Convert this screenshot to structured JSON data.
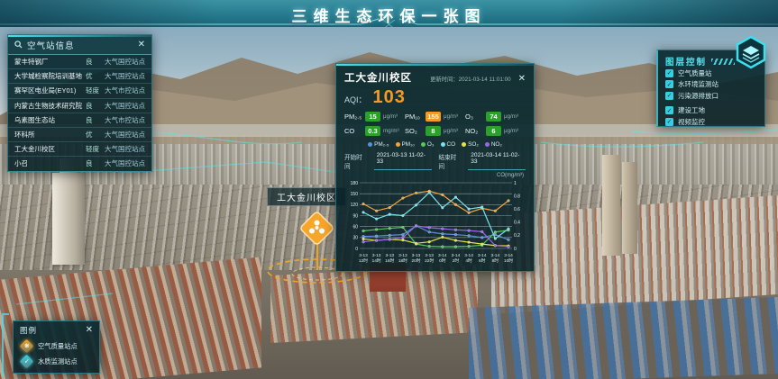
{
  "header": {
    "title": "三维生态环保一张图"
  },
  "station_panel": {
    "title": "空气站信息",
    "close": "✕",
    "rows": [
      {
        "name": "蒙丰特钢厂",
        "level": "良",
        "type": "大气国控站点"
      },
      {
        "name": "大学城检察院培训基地",
        "level": "优",
        "type": "大气国控站点"
      },
      {
        "name": "赛罕区电业局(EY01)",
        "level": "轻度",
        "type": "大气市控站点"
      },
      {
        "name": "内蒙古生物技术研究院",
        "level": "良",
        "type": "大气国控站点"
      },
      {
        "name": "乌素图生态站",
        "level": "良",
        "type": "大气市控站点"
      },
      {
        "name": "环科所",
        "level": "优",
        "type": "大气国控站点"
      },
      {
        "name": "工大金川校区",
        "level": "轻度",
        "type": "大气国控站点"
      },
      {
        "name": "小召",
        "level": "良",
        "type": "大气国控站点"
      }
    ]
  },
  "popup": {
    "title": "工大金川校区",
    "update_label": "更新时间：",
    "update_time": "2021-03-14 11:01:00",
    "close": "✕",
    "aqi_label": "AQI：",
    "aqi_value": "103",
    "pollutants": [
      {
        "name": "PM₂.₅",
        "value": "15",
        "unit": "μg/m³",
        "badge_color": "#2ba02b"
      },
      {
        "name": "PM₁₀",
        "value": "155",
        "unit": "μg/m³",
        "badge_color": "#f59a23"
      },
      {
        "name": "O₃",
        "value": "74",
        "unit": "μg/m³",
        "badge_color": "#2ba02b"
      },
      {
        "name": "CO",
        "value": "0.3",
        "unit": "mg/m³",
        "badge_color": "#2ba02b"
      },
      {
        "name": "SO₂",
        "value": "8",
        "unit": "μg/m³",
        "badge_color": "#2ba02b"
      },
      {
        "name": "NO₂",
        "value": "6",
        "unit": "μg/m³",
        "badge_color": "#2ba02b"
      }
    ],
    "start_label": "开始时间",
    "start_value": "2021-03-13 11-02-33",
    "end_label": "结束时间",
    "end_value": "2021-03-14 11-02-33",
    "right_axis_label": "CO(mg/m³)"
  },
  "chart_data": {
    "type": "line",
    "title": "",
    "x": [
      "3-13 12时",
      "3-13 14时",
      "3-13 16时",
      "3-13 18时",
      "3-13 20时",
      "3-13 22时",
      "3-14 0时",
      "3-14 2时",
      "3-14 4时",
      "3-14 6时",
      "3-14 8时",
      "3-14 10时"
    ],
    "left_axis": {
      "label": "",
      "range": [
        0,
        180
      ],
      "ticks": [
        0,
        30,
        60,
        90,
        120,
        150,
        180
      ]
    },
    "right_axis": {
      "label": "CO(mg/m³)",
      "range": [
        0,
        1
      ],
      "ticks": [
        0,
        0.2,
        0.4,
        0.6,
        0.8,
        1
      ]
    },
    "grid": true,
    "legend_position": "top",
    "series": [
      {
        "name": "PM₂.₅",
        "axis": "left",
        "color": "#5b8fd9",
        "values": [
          33,
          34,
          36,
          38,
          62,
          45,
          40,
          38,
          35,
          30,
          38,
          24
        ]
      },
      {
        "name": "PM₁₀",
        "axis": "left",
        "color": "#f3a43b",
        "values": [
          122,
          103,
          112,
          138,
          152,
          157,
          147,
          120,
          98,
          110,
          103,
          131
        ]
      },
      {
        "name": "O₃",
        "axis": "left",
        "color": "#57c75f",
        "values": [
          48,
          52,
          55,
          58,
          12,
          6,
          5,
          5,
          6,
          9,
          45,
          50
        ]
      },
      {
        "name": "CO",
        "axis": "right",
        "color": "#79e2ee",
        "values": [
          0.55,
          0.45,
          0.52,
          0.5,
          0.66,
          0.85,
          0.62,
          0.78,
          0.6,
          0.63,
          0.15,
          0.3
        ]
      },
      {
        "name": "SO₂",
        "axis": "left",
        "color": "#e7e344",
        "values": [
          26,
          22,
          25,
          23,
          14,
          18,
          31,
          22,
          17,
          12,
          8,
          7
        ]
      },
      {
        "name": "NO₂",
        "axis": "left",
        "color": "#9a66e8",
        "values": [
          18,
          22,
          25,
          30,
          62,
          57,
          54,
          51,
          49,
          46,
          8,
          5
        ]
      }
    ]
  },
  "layer_panel": {
    "title": "图层控制",
    "items": [
      {
        "label": "空气质量站",
        "checked": true
      },
      {
        "label": "水环境监测站",
        "checked": true
      },
      {
        "label": "污染源排放口",
        "checked": true
      },
      {
        "label": "建设工地",
        "checked": true
      },
      {
        "label": "视频监控",
        "checked": true
      }
    ]
  },
  "legend_panel": {
    "title": "图例",
    "close": "✕",
    "items": [
      {
        "label": "空气质量站点",
        "color": "#f5a623"
      },
      {
        "label": "水质监测站点",
        "color": "#35d3e2"
      }
    ]
  },
  "map_marker": {
    "label": "工大金川校区",
    "color": "#f5a623"
  }
}
